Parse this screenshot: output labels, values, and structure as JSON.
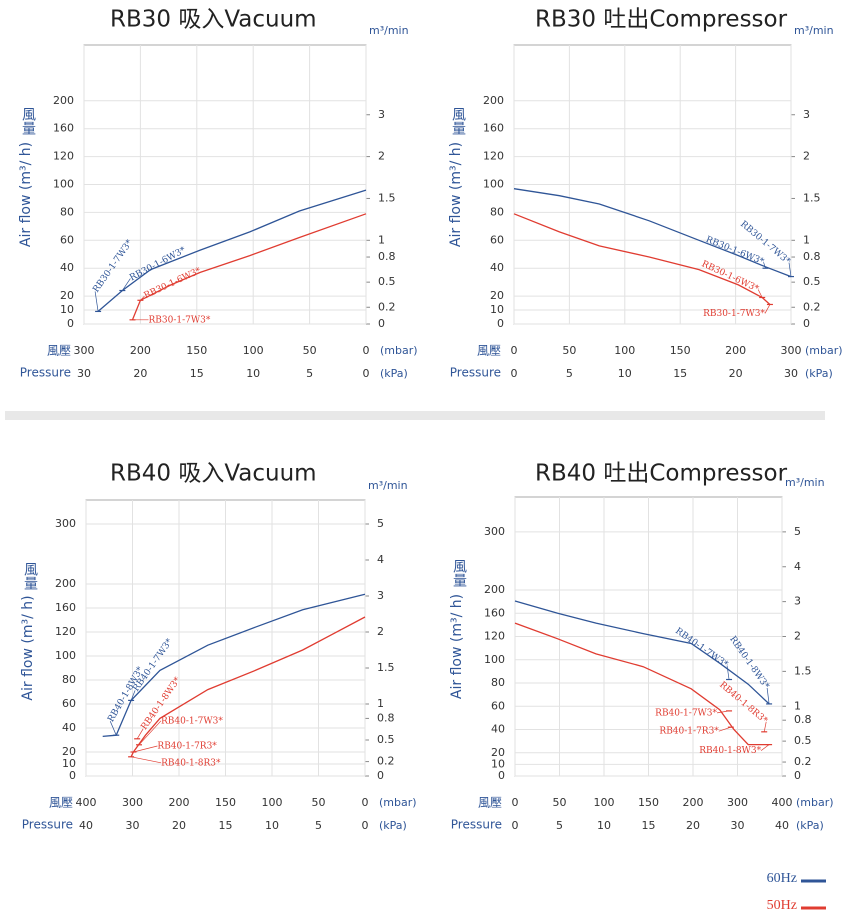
{
  "chart_data": [
    {
      "type": "line",
      "title": "RB30 吸入Vacuum",
      "ylabel": "Air flow (m³/ h)",
      "ylabel_zh": "風量",
      "y2label": "m³/min",
      "xlabel_zh": "風壓",
      "xlabel": "Pressure",
      "xunit": "(mbar)",
      "x2unit": "(kPa)",
      "xlim": [
        300,
        0
      ],
      "x_break": 200,
      "xticks": [
        300,
        200,
        150,
        100,
        50,
        0
      ],
      "x2ticks": [
        30,
        20,
        15,
        10,
        5,
        0
      ],
      "x2_scale_factor": 10,
      "ylim": [
        0,
        280
      ],
      "y_break": 120,
      "yticks": [
        0,
        10,
        20,
        40,
        60,
        80,
        100,
        120,
        160,
        200
      ],
      "y2ticks": [
        0,
        0.2,
        0.5,
        0.8,
        1,
        1.5,
        2,
        3
      ],
      "y2_scale_factor": 60,
      "grid": true,
      "series": [
        {
          "name": "60Hz",
          "color": "#2f5597",
          "x": [
            275,
            232,
            191,
            147,
            103,
            59,
            0
          ],
          "values": [
            9,
            24,
            39,
            53,
            66,
            81,
            96
          ]
        },
        {
          "name": "50Hz",
          "color": "#e03c31",
          "x": [
            214,
            200,
            173,
            147,
            103,
            59,
            0
          ],
          "values": [
            3,
            17,
            28,
            37,
            49,
            62,
            79
          ]
        }
      ],
      "annotations": [
        {
          "text": "RB30-1-7W3*",
          "color": "#2f5597",
          "x": 275,
          "y": 9
        },
        {
          "text": "RB30-1-6W3*",
          "color": "#2f5597",
          "x": 232,
          "y": 24
        },
        {
          "text": "RB30-1-6W3*",
          "color": "#e03c31",
          "x": 200,
          "y": 17
        },
        {
          "text": "RB30-1-7W3*",
          "color": "#e03c31",
          "x": 214,
          "y": 3
        }
      ]
    },
    {
      "type": "line",
      "title": "RB30 吐出Compressor",
      "ylabel": "Air flow (m³/ h)",
      "ylabel_zh": "風量",
      "y2label": "m³/min",
      "xlabel_zh": "風壓",
      "xlabel": "Pressure",
      "xunit": "(mbar)",
      "x2unit": "(kPa)",
      "xlim": [
        0,
        300
      ],
      "x_break": 200,
      "xticks": [
        0,
        50,
        100,
        150,
        200,
        300
      ],
      "x2ticks": [
        0,
        5,
        10,
        15,
        20,
        30
      ],
      "x2_scale_factor": 10,
      "ylim": [
        0,
        280
      ],
      "y_break": 120,
      "yticks": [
        0,
        10,
        20,
        40,
        60,
        80,
        100,
        120,
        160,
        200
      ],
      "y2ticks": [
        0,
        0.2,
        0.5,
        0.8,
        1,
        1.5,
        2,
        3
      ],
      "y2_scale_factor": 60,
      "grid": true,
      "series": [
        {
          "color": "#2f5597",
          "x": [
            0,
            41,
            77,
            122,
            167,
            205,
            254,
            300
          ],
          "values": [
            97,
            92,
            86,
            74,
            60,
            49,
            41,
            34
          ]
        },
        {
          "color": "#e03c31",
          "x": [
            0,
            41,
            77,
            122,
            167,
            205,
            248,
            262
          ],
          "values": [
            79,
            66,
            56,
            48,
            39,
            28,
            19,
            14
          ]
        }
      ],
      "annotations": [
        {
          "text": "RB30-1-7W3*",
          "color": "#2f5597",
          "x": 300,
          "y": 34
        },
        {
          "text": "RB30-1-6W3*",
          "color": "#2f5597",
          "x": 254,
          "y": 40
        },
        {
          "text": "RB30-1-6W3*",
          "color": "#e03c31",
          "x": 248,
          "y": 19
        },
        {
          "text": "RB30-1-7W3*",
          "color": "#e03c31",
          "x": 262,
          "y": 14
        }
      ]
    },
    {
      "type": "line",
      "title": "RB40 吸入Vacuum",
      "ylabel": "Air flow (m³/ h)",
      "ylabel_zh": "風量",
      "y2label": "m³/min",
      "xlabel_zh": "風壓",
      "xlabel": "Pressure",
      "xunit": "(mbar)",
      "x2unit": "(kPa)",
      "xlim": [
        400,
        0
      ],
      "x_break": 200,
      "xticks": [
        400,
        300,
        200,
        150,
        100,
        50,
        0
      ],
      "x2ticks": [
        40,
        30,
        20,
        15,
        10,
        5,
        0
      ],
      "x2_scale_factor": 10,
      "ylim": [
        0,
        340
      ],
      "y_break": 120,
      "yticks": [
        0,
        10,
        20,
        40,
        60,
        80,
        100,
        120,
        160,
        200,
        300
      ],
      "y2ticks": [
        0,
        0.2,
        0.5,
        0.8,
        1,
        1.5,
        2,
        3,
        4,
        5
      ],
      "y2_scale_factor": 60,
      "grid": true,
      "series": [
        {
          "color": "#2f5597",
          "x": [
            364,
            335,
            303,
            241,
            169,
            118,
            67,
            0
          ],
          "values": [
            33,
            34,
            63,
            88,
            109,
            128,
            157,
            183
          ]
        },
        {
          "color": "#e03c31",
          "x": [
            303,
            298,
            272,
            241,
            169,
            118,
            67,
            0
          ],
          "values": [
            16,
            20,
            34,
            48,
            72,
            88,
            105,
            145
          ]
        }
      ],
      "annotations": [
        {
          "text": "RB40-1-8W3*",
          "color": "#2f5597",
          "x": 335,
          "y": 34
        },
        {
          "text": "RB40-1-7W3*",
          "color": "#2f5597",
          "x": 303,
          "y": 63
        },
        {
          "text": "RB40-1-8W3*",
          "color": "#e03c31",
          "x": 290,
          "y": 31
        },
        {
          "text": "RB40-1-7W3*",
          "color": "#e03c31",
          "x": 286,
          "y": 26
        },
        {
          "text": "RB40-1-7R3*",
          "color": "#e03c31",
          "x": 298,
          "y": 20
        },
        {
          "text": "RB40-1-8R3*",
          "color": "#e03c31",
          "x": 303,
          "y": 16
        }
      ]
    },
    {
      "type": "line",
      "title": "RB40 吐出Compressor",
      "ylabel": "Air flow (m³/ h)",
      "ylabel_zh": "風量",
      "y2label": "m³/min",
      "xlabel_zh": "風壓",
      "xlabel": "Pressure",
      "xunit": "(mbar)",
      "x2unit": "(kPa)",
      "xlim": [
        0,
        400
      ],
      "x_break": 200,
      "xticks": [
        0,
        50,
        100,
        150,
        200,
        300,
        400
      ],
      "x2ticks": [
        0,
        5,
        10,
        15,
        20,
        30,
        40
      ],
      "x2_scale_factor": 10,
      "ylim": [
        0,
        360
      ],
      "y_break": 120,
      "yticks": [
        0,
        10,
        20,
        40,
        60,
        80,
        100,
        120,
        160,
        200,
        300
      ],
      "y2ticks": [
        0,
        0.2,
        0.5,
        0.8,
        1,
        1.5,
        2,
        3,
        4,
        5
      ],
      "y2_scale_factor": 60,
      "grid": true,
      "series": [
        {
          "color": "#2f5597",
          "x": [
            0,
            48,
            91,
            144,
            198,
            260,
            324,
            371
          ],
          "values": [
            181,
            160,
            143,
            125,
            114,
            97,
            79,
            62
          ]
        },
        {
          "color": "#e03c31",
          "x": [
            0,
            48,
            91,
            144,
            198,
            260,
            292,
            324,
            371
          ],
          "values": [
            143,
            118,
            105,
            94,
            75,
            57,
            40,
            27,
            27
          ]
        }
      ],
      "annotations": [
        {
          "text": "RB40-1-7W3*",
          "color": "#2f5597",
          "x": 281,
          "y": 83
        },
        {
          "text": "RB40-1-8W3*",
          "color": "#2f5597",
          "x": 371,
          "y": 62
        },
        {
          "text": "RB40-1-7W3*",
          "color": "#e03c31",
          "x": 281,
          "y": 56
        },
        {
          "text": "RB40-1-7R3*",
          "color": "#e03c31",
          "x": 285,
          "y": 42
        },
        {
          "text": "RB40-1-8R3*",
          "color": "#e03c31",
          "x": 360,
          "y": 38
        },
        {
          "text": "RB40-1-8W3*",
          "color": "#e03c31",
          "x": 371,
          "y": 27
        }
      ]
    }
  ]
}
